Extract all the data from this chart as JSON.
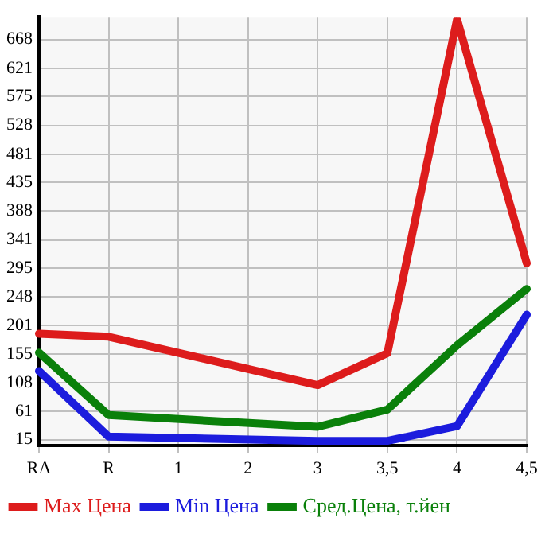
{
  "chart_data": {
    "type": "line",
    "categories": [
      "RA",
      "R",
      "1",
      "2",
      "3",
      "3,5",
      "4",
      "4,5"
    ],
    "series": [
      {
        "name": "Max Цена",
        "color": "#dd1c1c",
        "values": [
          188,
          183,
          null,
          null,
          104,
          156,
          701,
          303
        ]
      },
      {
        "name": "Min Цена",
        "color": "#1c1cdd",
        "values": [
          127,
          20,
          null,
          null,
          13,
          13,
          37,
          219
        ]
      },
      {
        "name": "Сред.Цена, т.йен",
        "color": "#0a800a",
        "values": [
          157,
          55,
          null,
          null,
          36,
          64,
          169,
          261
        ]
      }
    ],
    "ylim": [
      6,
      705
    ],
    "yticks": [
      15,
      61,
      108,
      155,
      201,
      248,
      295,
      341,
      388,
      435,
      481,
      528,
      575,
      621,
      668
    ],
    "grid": true,
    "legend": "bottom",
    "marker": "none",
    "line_style": "solid"
  }
}
